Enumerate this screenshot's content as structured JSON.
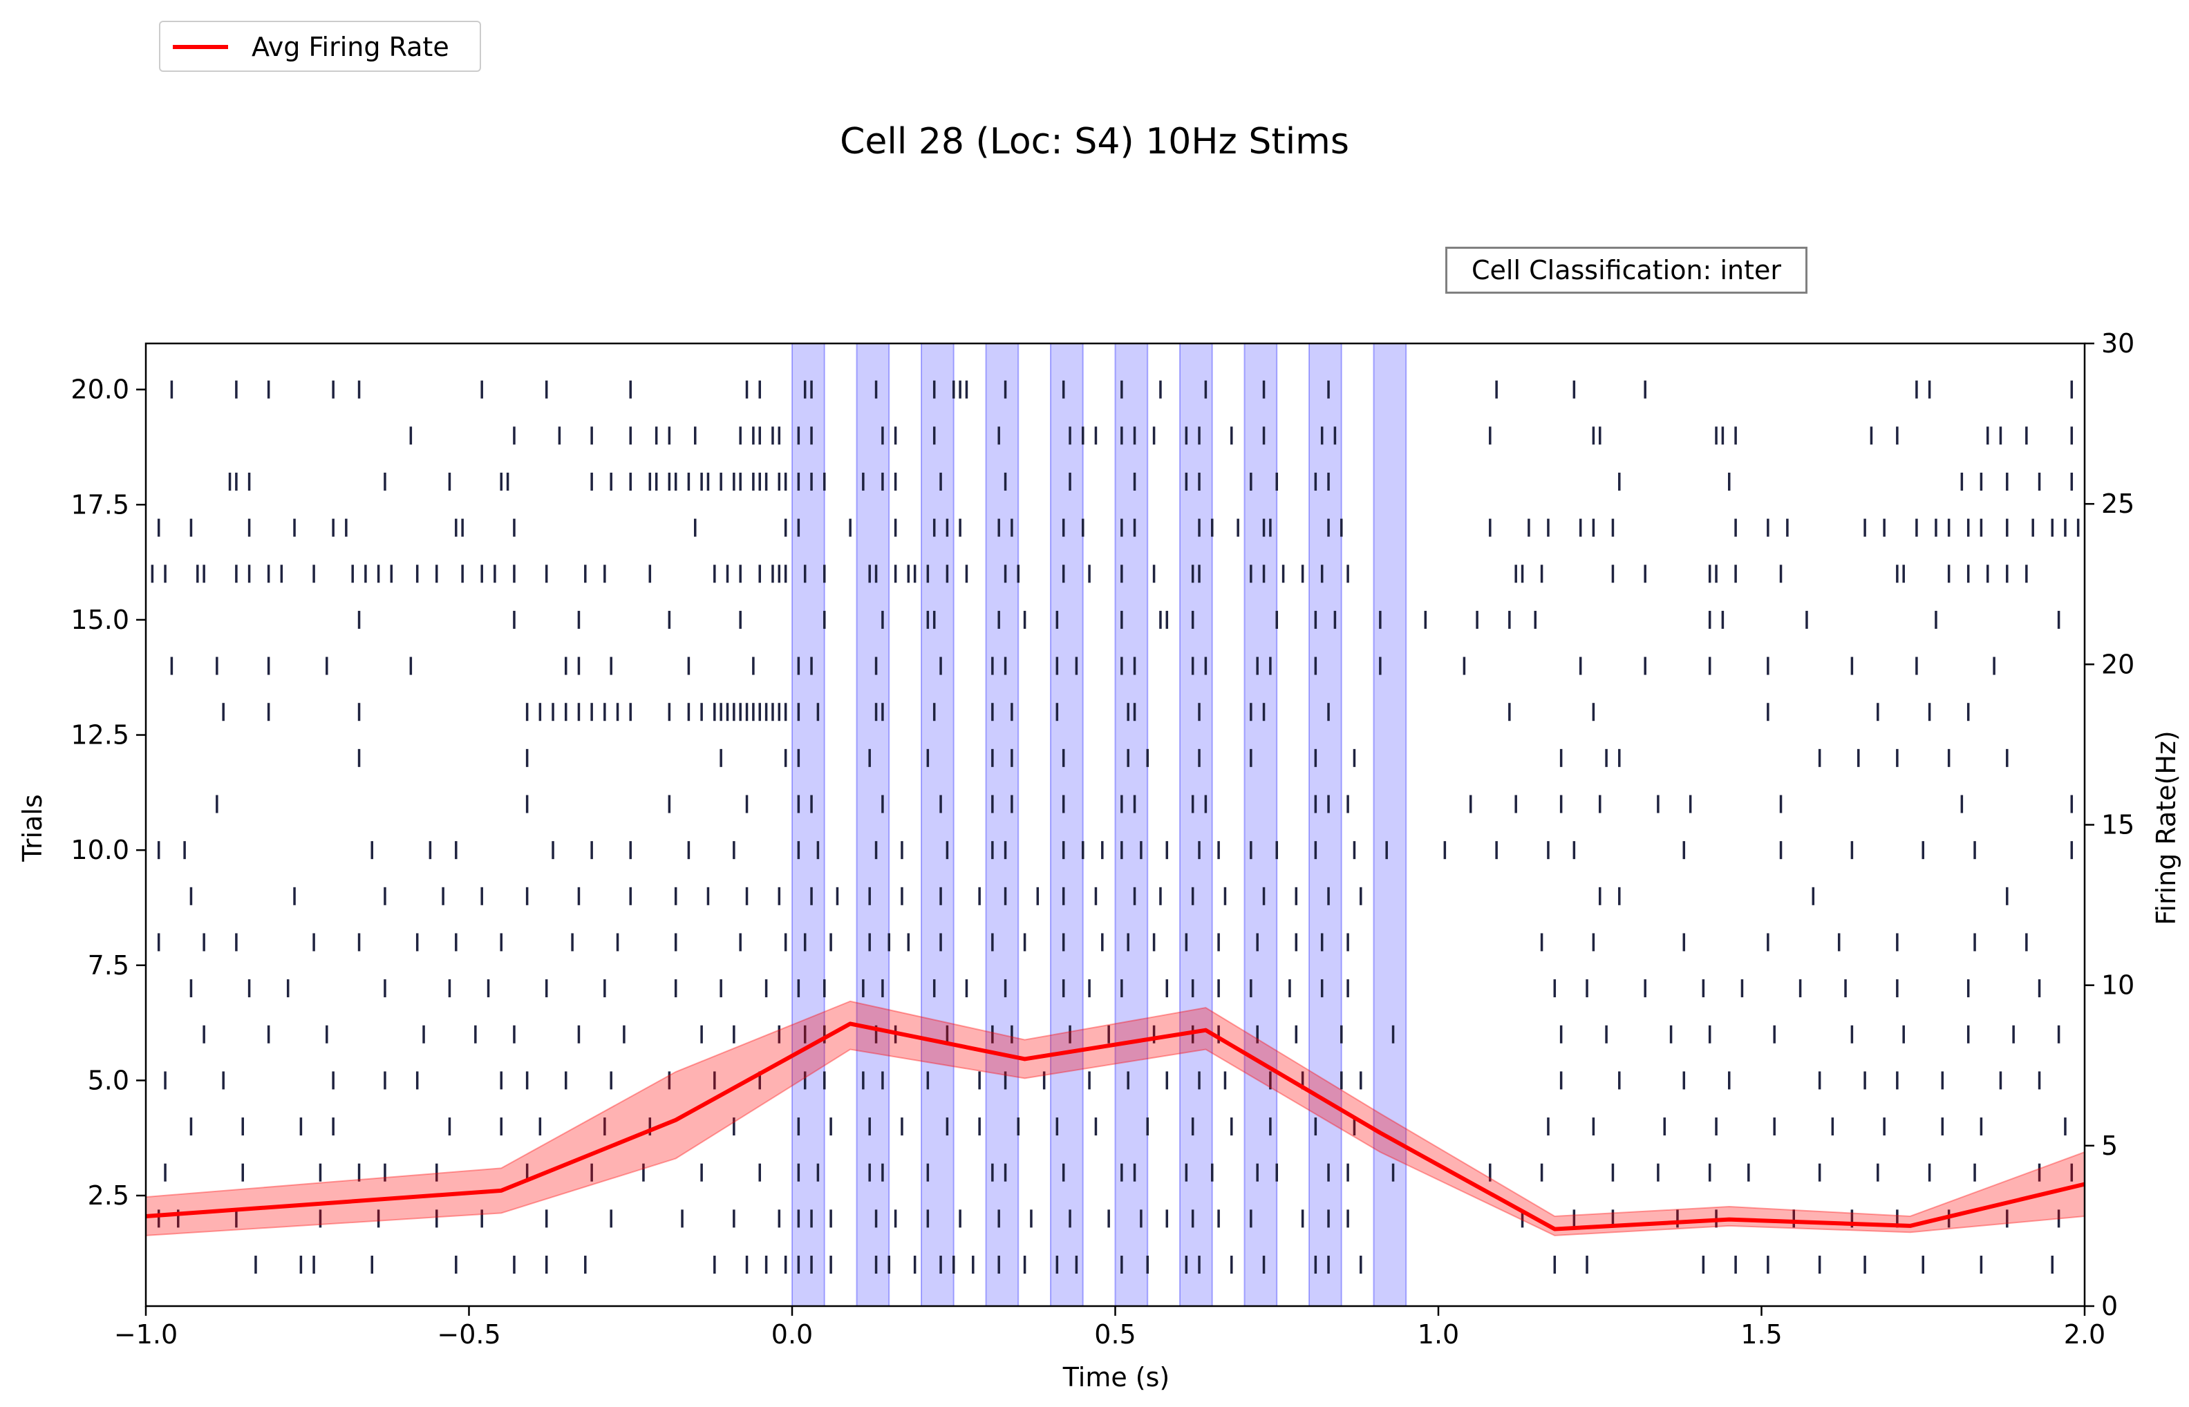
{
  "title": "Cell 28 (Loc: S4) 10Hz Stims",
  "annotation": "Cell Classification: inter",
  "legend": {
    "label": "Avg Firing Rate",
    "color": "#ff0000"
  },
  "colors": {
    "spike": "#1f2340",
    "stim": "#0000ff",
    "rate": "#ff0000"
  },
  "chart_data": {
    "type": "line",
    "xlabel": "Time (s)",
    "ylabel_left": "Trials",
    "ylabel_right": "Firing Rate(Hz)",
    "xlim": [
      -1.0,
      2.0
    ],
    "ylim_left": [
      0.1,
      21.0
    ],
    "ylim_right": [
      0,
      30
    ],
    "x_ticks": [
      "−1.0",
      "−0.5",
      "0.0",
      "0.5",
      "1.0",
      "1.5",
      "2.0"
    ],
    "x_tick_values": [
      -1.0,
      -0.5,
      0.0,
      0.5,
      1.0,
      1.5,
      2.0
    ],
    "y_left_ticks": [
      "2.5",
      "5.0",
      "7.5",
      "10.0",
      "12.5",
      "15.0",
      "17.5",
      "20.0"
    ],
    "y_left_tick_values": [
      2.5,
      5.0,
      7.5,
      10.0,
      12.5,
      15.0,
      17.5,
      20.0
    ],
    "y_right_ticks": [
      "0",
      "5",
      "10",
      "15",
      "20",
      "25",
      "30"
    ],
    "y_right_tick_values": [
      0,
      5,
      10,
      15,
      20,
      25,
      30
    ],
    "stimulus_windows": [
      [
        0.0,
        0.05
      ],
      [
        0.1,
        0.15
      ],
      [
        0.2,
        0.25
      ],
      [
        0.3,
        0.35
      ],
      [
        0.4,
        0.45
      ],
      [
        0.5,
        0.55
      ],
      [
        0.6,
        0.65
      ],
      [
        0.7,
        0.75
      ],
      [
        0.8,
        0.85
      ],
      [
        0.9,
        0.95
      ]
    ],
    "series": [
      {
        "name": "Avg Firing Rate",
        "axis": "right",
        "x": [
          -1.0,
          -0.45,
          -0.18,
          0.09,
          0.36,
          0.64,
          0.91,
          1.18,
          1.45,
          1.73,
          2.0
        ],
        "y": [
          2.8,
          3.6,
          5.8,
          8.8,
          7.7,
          8.6,
          5.4,
          2.4,
          2.7,
          2.5,
          3.8
        ],
        "lower": [
          2.2,
          2.9,
          4.6,
          8.0,
          7.1,
          8.0,
          4.8,
          2.2,
          2.5,
          2.3,
          2.8
        ],
        "upper": [
          3.4,
          4.3,
          7.3,
          9.5,
          8.3,
          9.3,
          6.0,
          2.8,
          3.1,
          2.8,
          4.8
        ]
      }
    ],
    "raster": [
      {
        "trial": 1,
        "times": [
          -0.83,
          -0.76,
          -0.74,
          -0.65,
          -0.52,
          -0.43,
          -0.38,
          -0.32,
          -0.12,
          -0.07,
          -0.04,
          -0.01,
          0.01,
          0.03,
          0.06,
          0.13,
          0.15,
          0.19,
          0.23,
          0.25,
          0.28,
          0.32,
          0.36,
          0.41,
          0.44,
          0.51,
          0.55,
          0.61,
          0.63,
          0.68,
          0.73,
          0.81,
          0.83,
          0.88,
          1.18,
          1.23,
          1.41,
          1.46,
          1.51,
          1.59,
          1.66,
          1.75,
          1.84,
          1.95
        ]
      },
      {
        "trial": 2,
        "times": [
          -0.98,
          -0.95,
          -0.86,
          -0.73,
          -0.64,
          -0.55,
          -0.48,
          -0.38,
          -0.28,
          -0.17,
          -0.09,
          -0.02,
          0.01,
          0.03,
          0.06,
          0.13,
          0.16,
          0.21,
          0.26,
          0.32,
          0.37,
          0.43,
          0.49,
          0.54,
          0.58,
          0.62,
          0.66,
          0.71,
          0.79,
          0.83,
          0.86,
          1.13,
          1.21,
          1.27,
          1.37,
          1.43,
          1.55,
          1.64,
          1.71,
          1.79,
          1.88,
          1.96
        ]
      },
      {
        "trial": 3,
        "times": [
          -0.97,
          -0.85,
          -0.73,
          -0.67,
          -0.63,
          -0.55,
          -0.41,
          -0.31,
          -0.23,
          -0.14,
          -0.05,
          0.01,
          0.04,
          0.12,
          0.14,
          0.21,
          0.31,
          0.33,
          0.42,
          0.51,
          0.53,
          0.61,
          0.65,
          0.72,
          0.75,
          0.83,
          0.86,
          0.93,
          1.08,
          1.16,
          1.27,
          1.34,
          1.42,
          1.48,
          1.59,
          1.68,
          1.76,
          1.83,
          1.93,
          1.98
        ]
      },
      {
        "trial": 4,
        "times": [
          -0.93,
          -0.85,
          -0.76,
          -0.71,
          -0.53,
          -0.45,
          -0.39,
          -0.29,
          -0.22,
          -0.09,
          0.01,
          0.06,
          0.12,
          0.17,
          0.24,
          0.29,
          0.35,
          0.41,
          0.47,
          0.55,
          0.62,
          0.68,
          0.74,
          0.81,
          0.87,
          1.17,
          1.24,
          1.35,
          1.43,
          1.52,
          1.61,
          1.69,
          1.78,
          1.84,
          1.97
        ]
      },
      {
        "trial": 5,
        "times": [
          -0.97,
          -0.88,
          -0.71,
          -0.63,
          -0.58,
          -0.45,
          -0.41,
          -0.35,
          -0.28,
          -0.19,
          -0.12,
          -0.05,
          0.02,
          0.05,
          0.11,
          0.14,
          0.21,
          0.29,
          0.33,
          0.39,
          0.46,
          0.52,
          0.58,
          0.63,
          0.67,
          0.74,
          0.79,
          0.85,
          0.88,
          1.19,
          1.28,
          1.38,
          1.45,
          1.59,
          1.66,
          1.71,
          1.78,
          1.87,
          1.93
        ]
      },
      {
        "trial": 6,
        "times": [
          -0.91,
          -0.81,
          -0.72,
          -0.57,
          -0.49,
          -0.43,
          -0.33,
          -0.26,
          -0.14,
          -0.09,
          -0.02,
          0.02,
          0.05,
          0.13,
          0.16,
          0.24,
          0.31,
          0.34,
          0.43,
          0.49,
          0.56,
          0.62,
          0.66,
          0.72,
          0.78,
          0.85,
          0.93,
          1.19,
          1.26,
          1.36,
          1.42,
          1.52,
          1.64,
          1.72,
          1.82,
          1.89,
          1.96
        ]
      },
      {
        "trial": 7,
        "times": [
          -0.93,
          -0.84,
          -0.78,
          -0.63,
          -0.53,
          -0.47,
          -0.38,
          -0.29,
          -0.18,
          -0.11,
          -0.04,
          0.01,
          0.05,
          0.11,
          0.14,
          0.22,
          0.27,
          0.33,
          0.42,
          0.46,
          0.51,
          0.58,
          0.62,
          0.66,
          0.71,
          0.77,
          0.82,
          0.86,
          1.18,
          1.23,
          1.32,
          1.41,
          1.47,
          1.56,
          1.63,
          1.71,
          1.82,
          1.93
        ]
      },
      {
        "trial": 8,
        "times": [
          -0.98,
          -0.91,
          -0.86,
          -0.74,
          -0.67,
          -0.58,
          -0.52,
          -0.45,
          -0.34,
          -0.27,
          -0.18,
          -0.08,
          -0.01,
          0.02,
          0.06,
          0.12,
          0.15,
          0.18,
          0.23,
          0.31,
          0.36,
          0.42,
          0.48,
          0.52,
          0.56,
          0.61,
          0.66,
          0.72,
          0.78,
          0.82,
          0.86,
          1.16,
          1.24,
          1.38,
          1.51,
          1.62,
          1.71,
          1.83,
          1.91
        ]
      },
      {
        "trial": 9,
        "times": [
          -0.93,
          -0.77,
          -0.63,
          -0.54,
          -0.48,
          -0.41,
          -0.33,
          -0.25,
          -0.18,
          -0.13,
          -0.07,
          -0.02,
          0.03,
          0.07,
          0.12,
          0.17,
          0.23,
          0.29,
          0.33,
          0.38,
          0.42,
          0.47,
          0.53,
          0.57,
          0.62,
          0.67,
          0.73,
          0.78,
          0.83,
          0.88,
          1.25,
          1.28,
          1.58,
          1.88
        ]
      },
      {
        "trial": 10,
        "times": [
          -0.98,
          -0.94,
          -0.65,
          -0.56,
          -0.52,
          -0.37,
          -0.31,
          -0.25,
          -0.16,
          -0.09,
          0.01,
          0.04,
          0.13,
          0.17,
          0.24,
          0.31,
          0.33,
          0.42,
          0.45,
          0.48,
          0.51,
          0.54,
          0.58,
          0.63,
          0.66,
          0.71,
          0.75,
          0.81,
          0.87,
          0.92,
          1.01,
          1.09,
          1.17,
          1.21,
          1.38,
          1.53,
          1.64,
          1.75,
          1.83,
          1.98
        ]
      },
      {
        "trial": 11,
        "times": [
          -0.89,
          -0.41,
          -0.19,
          -0.07,
          0.01,
          0.03,
          0.14,
          0.23,
          0.31,
          0.34,
          0.42,
          0.51,
          0.53,
          0.62,
          0.64,
          0.81,
          0.83,
          0.86,
          1.05,
          1.12,
          1.19,
          1.25,
          1.34,
          1.39,
          1.53,
          1.81,
          1.98
        ]
      },
      {
        "trial": 12,
        "times": [
          -0.67,
          -0.41,
          -0.11,
          -0.01,
          0.01,
          0.12,
          0.21,
          0.31,
          0.34,
          0.42,
          0.52,
          0.55,
          0.63,
          0.71,
          0.81,
          0.87,
          1.19,
          1.26,
          1.28,
          1.59,
          1.65,
          1.71,
          1.79,
          1.88
        ]
      },
      {
        "trial": 13,
        "times": [
          -0.88,
          -0.81,
          -0.67,
          -0.41,
          -0.39,
          -0.37,
          -0.35,
          -0.33,
          -0.31,
          -0.29,
          -0.27,
          -0.25,
          -0.19,
          -0.16,
          -0.14,
          -0.12,
          -0.11,
          -0.1,
          -0.09,
          -0.08,
          -0.07,
          -0.06,
          -0.05,
          -0.04,
          -0.03,
          -0.02,
          -0.01,
          0.01,
          0.04,
          0.13,
          0.14,
          0.22,
          0.31,
          0.34,
          0.41,
          0.52,
          0.53,
          0.63,
          0.71,
          0.73,
          0.83,
          1.11,
          1.24,
          1.51,
          1.68,
          1.76,
          1.82
        ]
      },
      {
        "trial": 14,
        "times": [
          -0.96,
          -0.89,
          -0.81,
          -0.72,
          -0.59,
          -0.35,
          -0.33,
          -0.28,
          -0.16,
          -0.06,
          0.01,
          0.03,
          0.13,
          0.23,
          0.31,
          0.33,
          0.41,
          0.44,
          0.51,
          0.53,
          0.62,
          0.64,
          0.72,
          0.74,
          0.81,
          0.91,
          1.04,
          1.22,
          1.32,
          1.42,
          1.51,
          1.64,
          1.74,
          1.86
        ]
      },
      {
        "trial": 15,
        "times": [
          -0.67,
          -0.43,
          -0.33,
          -0.19,
          -0.08,
          0.05,
          0.14,
          0.21,
          0.22,
          0.32,
          0.36,
          0.41,
          0.51,
          0.57,
          0.58,
          0.62,
          0.75,
          0.81,
          0.84,
          0.91,
          0.98,
          1.06,
          1.11,
          1.15,
          1.42,
          1.44,
          1.57,
          1.77,
          1.96
        ]
      },
      {
        "trial": 16,
        "times": [
          -0.99,
          -0.97,
          -0.92,
          -0.91,
          -0.86,
          -0.84,
          -0.81,
          -0.79,
          -0.74,
          -0.68,
          -0.66,
          -0.64,
          -0.62,
          -0.58,
          -0.55,
          -0.51,
          -0.48,
          -0.46,
          -0.43,
          -0.38,
          -0.32,
          -0.29,
          -0.22,
          -0.12,
          -0.1,
          -0.08,
          -0.05,
          -0.03,
          -0.02,
          -0.01,
          0.02,
          0.05,
          0.12,
          0.13,
          0.16,
          0.18,
          0.19,
          0.21,
          0.24,
          0.27,
          0.33,
          0.35,
          0.42,
          0.46,
          0.51,
          0.56,
          0.62,
          0.63,
          0.71,
          0.73,
          0.76,
          0.79,
          0.82,
          0.86,
          1.12,
          1.13,
          1.16,
          1.27,
          1.32,
          1.42,
          1.43,
          1.46,
          1.53,
          1.71,
          1.72,
          1.79,
          1.82,
          1.85,
          1.88,
          1.91
        ]
      },
      {
        "trial": 17,
        "times": [
          -0.98,
          -0.93,
          -0.84,
          -0.77,
          -0.71,
          -0.69,
          -0.52,
          -0.51,
          -0.43,
          -0.15,
          -0.01,
          0.01,
          0.09,
          0.16,
          0.22,
          0.24,
          0.26,
          0.32,
          0.34,
          0.42,
          0.45,
          0.51,
          0.53,
          0.63,
          0.65,
          0.69,
          0.73,
          0.74,
          0.83,
          0.85,
          1.08,
          1.14,
          1.17,
          1.22,
          1.24,
          1.27,
          1.46,
          1.51,
          1.54,
          1.66,
          1.69,
          1.74,
          1.77,
          1.79,
          1.82,
          1.84,
          1.88,
          1.92,
          1.95,
          1.97,
          1.99
        ]
      },
      {
        "trial": 18,
        "times": [
          -0.87,
          -0.86,
          -0.84,
          -0.63,
          -0.53,
          -0.45,
          -0.44,
          -0.31,
          -0.28,
          -0.25,
          -0.22,
          -0.21,
          -0.19,
          -0.18,
          -0.16,
          -0.14,
          -0.13,
          -0.11,
          -0.09,
          -0.08,
          -0.06,
          -0.05,
          -0.04,
          -0.02,
          -0.01,
          0.01,
          0.03,
          0.05,
          0.11,
          0.14,
          0.16,
          0.23,
          0.33,
          0.43,
          0.53,
          0.61,
          0.63,
          0.71,
          0.75,
          0.81,
          0.83,
          1.28,
          1.45,
          1.81,
          1.84,
          1.88,
          1.93,
          1.98
        ]
      },
      {
        "trial": 19,
        "times": [
          -0.59,
          -0.43,
          -0.36,
          -0.31,
          -0.25,
          -0.21,
          -0.19,
          -0.15,
          -0.08,
          -0.06,
          -0.05,
          -0.03,
          -0.02,
          0.01,
          0.03,
          0.14,
          0.16,
          0.22,
          0.32,
          0.43,
          0.45,
          0.47,
          0.51,
          0.53,
          0.56,
          0.61,
          0.63,
          0.68,
          0.73,
          0.82,
          0.84,
          1.08,
          1.24,
          1.25,
          1.43,
          1.44,
          1.46,
          1.67,
          1.71,
          1.85,
          1.87,
          1.91,
          1.98
        ]
      },
      {
        "trial": 20,
        "times": [
          -0.96,
          -0.86,
          -0.81,
          -0.71,
          -0.67,
          -0.48,
          -0.38,
          -0.25,
          -0.07,
          -0.05,
          0.02,
          0.03,
          0.13,
          0.22,
          0.25,
          0.26,
          0.27,
          0.33,
          0.42,
          0.51,
          0.57,
          0.64,
          0.73,
          0.83,
          1.09,
          1.21,
          1.32,
          1.74,
          1.76,
          1.98
        ]
      }
    ]
  }
}
